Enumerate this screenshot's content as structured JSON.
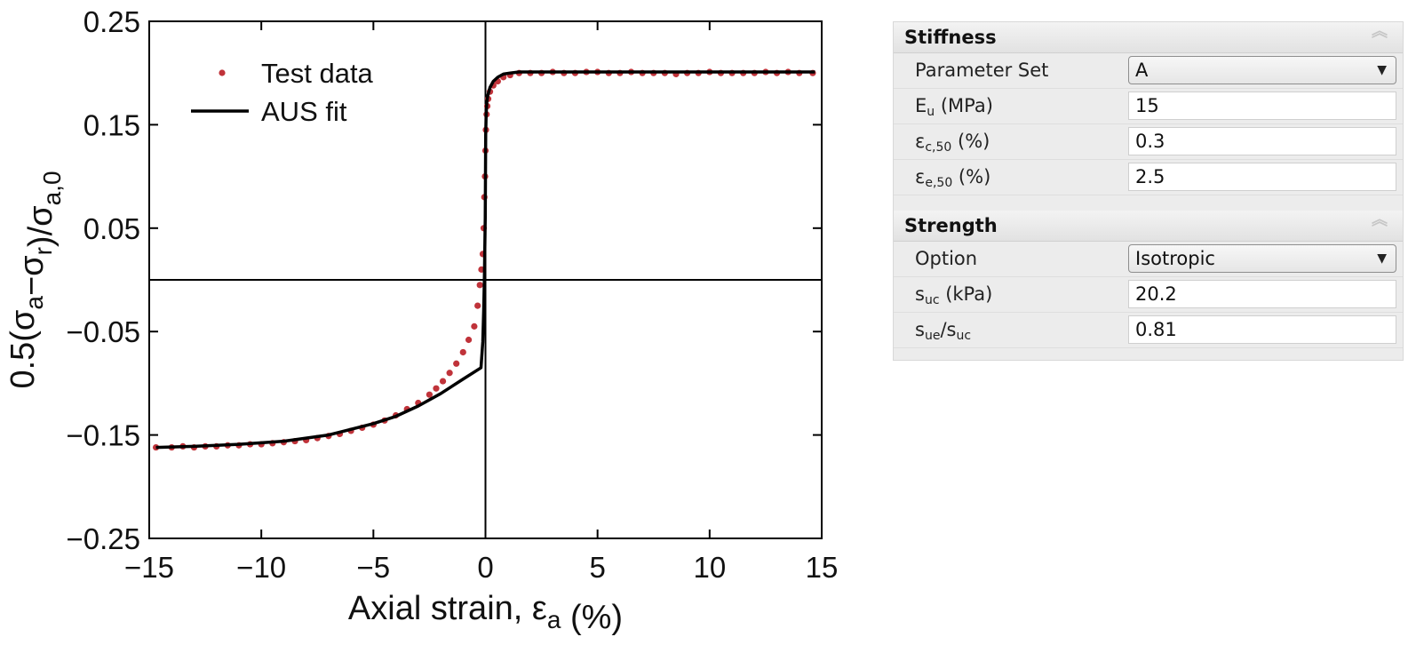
{
  "chart_data": {
    "type": "scatter",
    "title": "",
    "xlabel": "Axial strain, ε_a (%)",
    "ylabel": "0.5(σ_a−σ_r)/σ_a,0",
    "xlim": [
      -15,
      15
    ],
    "ylim": [
      -0.25,
      0.25
    ],
    "xticks": [
      -15,
      -10,
      -5,
      0,
      5,
      10,
      15
    ],
    "yticks": [
      0.25,
      0.15,
      0.05,
      -0.05,
      -0.15,
      -0.25
    ],
    "xtick_labels": [
      "−15",
      "−10",
      "−5",
      "0",
      "5",
      "10",
      "15"
    ],
    "ytick_labels": [
      "0.25",
      "0.15",
      "0.05",
      "−0.05",
      "−0.15",
      "−0.25"
    ],
    "grid": false,
    "legend_position": "top-left",
    "legend": [
      "Test data",
      "AUS fit"
    ],
    "series": [
      {
        "name": "Test data",
        "style": "points",
        "color": "#c0333a",
        "x": [
          -14.7,
          -14.0,
          -13.5,
          -13.0,
          -12.5,
          -12.0,
          -11.5,
          -11.0,
          -10.5,
          -10.0,
          -9.5,
          -9.0,
          -8.5,
          -8.0,
          -7.5,
          -7.0,
          -6.5,
          -6.0,
          -5.5,
          -5.0,
          -4.5,
          -4.0,
          -3.5,
          -3.0,
          -2.5,
          -2.2,
          -1.9,
          -1.6,
          -1.3,
          -1.0,
          -0.75,
          -0.5,
          -0.35,
          -0.25,
          -0.18,
          -0.12,
          -0.08,
          -0.05,
          -0.02,
          0.0,
          0.02,
          0.05,
          0.08,
          0.12,
          0.2,
          0.35,
          0.55,
          0.8,
          1.1,
          1.5,
          2.0,
          2.5,
          3.0,
          3.5,
          4.0,
          4.5,
          5.0,
          5.5,
          6.0,
          6.5,
          7.0,
          7.5,
          8.0,
          8.5,
          9.0,
          9.5,
          10.0,
          10.5,
          11.0,
          11.5,
          12.0,
          12.5,
          13.0,
          13.5,
          14.0,
          14.6
        ],
        "y": [
          -0.162,
          -0.162,
          -0.161,
          -0.162,
          -0.161,
          -0.161,
          -0.16,
          -0.16,
          -0.159,
          -0.159,
          -0.158,
          -0.157,
          -0.156,
          -0.155,
          -0.153,
          -0.151,
          -0.149,
          -0.146,
          -0.143,
          -0.14,
          -0.136,
          -0.131,
          -0.125,
          -0.119,
          -0.111,
          -0.105,
          -0.098,
          -0.09,
          -0.081,
          -0.07,
          -0.058,
          -0.045,
          -0.025,
          -0.005,
          0.01,
          0.025,
          0.05,
          0.08,
          0.1,
          0.125,
          0.145,
          0.16,
          0.168,
          0.175,
          0.182,
          0.188,
          0.192,
          0.196,
          0.198,
          0.2,
          0.2,
          0.2,
          0.201,
          0.2,
          0.2,
          0.201,
          0.201,
          0.2,
          0.2,
          0.201,
          0.2,
          0.2,
          0.2,
          0.199,
          0.2,
          0.2,
          0.201,
          0.2,
          0.2,
          0.2,
          0.2,
          0.201,
          0.2,
          0.201,
          0.2,
          0.2
        ]
      },
      {
        "name": "AUS fit",
        "style": "line",
        "color": "#000000",
        "x": [
          -14.7,
          -13.0,
          -11.0,
          -9.0,
          -7.0,
          -5.0,
          -4.0,
          -3.0,
          -2.0,
          -1.0,
          -0.2,
          -0.12,
          -0.08,
          -0.05,
          -0.03,
          -0.01,
          0.0,
          0.01,
          0.03,
          0.06,
          0.1,
          0.2,
          0.35,
          0.55,
          0.8,
          1.1,
          1.5,
          2.0,
          3.0,
          5.0,
          8.0,
          11.0,
          14.7
        ],
        "y": [
          -0.162,
          -0.161,
          -0.159,
          -0.156,
          -0.15,
          -0.139,
          -0.132,
          -0.122,
          -0.11,
          -0.096,
          -0.085,
          -0.06,
          -0.03,
          0.0,
          0.03,
          0.06,
          0.1,
          0.14,
          0.16,
          0.172,
          0.178,
          0.186,
          0.192,
          0.196,
          0.199,
          0.2,
          0.201,
          0.201,
          0.201,
          0.201,
          0.201,
          0.201,
          0.201
        ]
      }
    ]
  },
  "panel": {
    "stiffness": {
      "title": "Stiffness",
      "collapse_icon": "double-chevron-up-icon",
      "parameter_set": {
        "label": "Parameter Set",
        "value": "A"
      },
      "eu": {
        "label_main": "E",
        "label_sub": "u",
        "label_rest": " (MPa)",
        "value": "15"
      },
      "ec50": {
        "label_main": "ε",
        "label_sub": "c,50",
        "label_rest": " (%)",
        "value": "0.3"
      },
      "ee50": {
        "label_main": "ε",
        "label_sub": "e,50",
        "label_rest": " (%)",
        "value": "2.5"
      }
    },
    "strength": {
      "title": "Strength",
      "collapse_icon": "double-chevron-up-icon",
      "option": {
        "label": "Option",
        "value": "Isotropic"
      },
      "suc": {
        "label_main": "s",
        "label_sub": "uc",
        "label_rest": " (kPa)",
        "value": "20.2"
      },
      "ratio": {
        "label_main": "s",
        "label_sub": "ue",
        "label_mid": "/s",
        "label_sub2": "uc",
        "value": "0.81"
      }
    }
  }
}
